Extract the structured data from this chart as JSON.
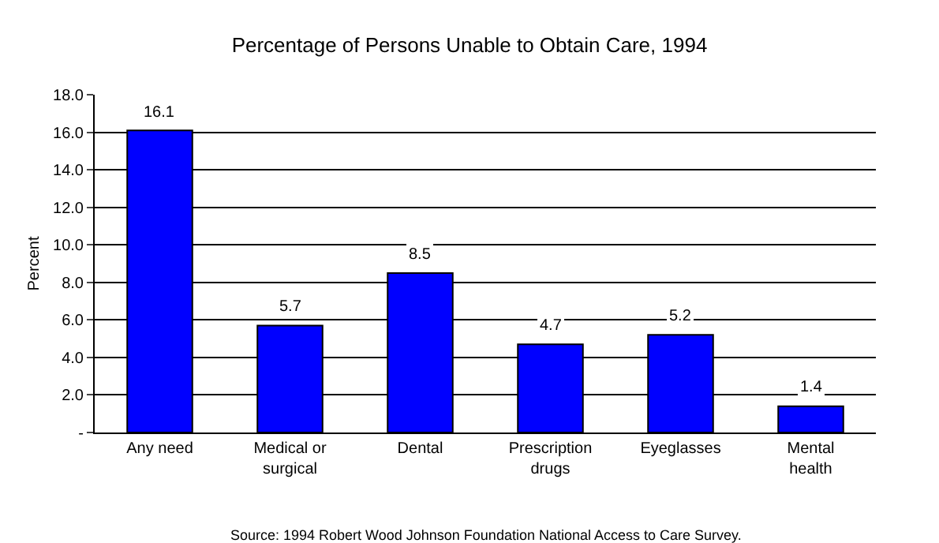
{
  "chart_data": {
    "type": "bar",
    "title": "Percentage of Persons Unable to Obtain Care, 1994",
    "ylabel": "Percent",
    "categories": [
      "Any need",
      "Medical or\nsurgical",
      "Dental",
      "Prescription\ndrugs",
      "Eyeglasses",
      "Mental\nhealth"
    ],
    "values": [
      16.1,
      5.7,
      8.5,
      4.7,
      5.2,
      1.4
    ],
    "color": "#0000ff",
    "ylim": [
      0,
      18
    ],
    "yticks": [
      {
        "value": 0,
        "label": "-"
      },
      {
        "value": 2,
        "label": "2.0"
      },
      {
        "value": 4,
        "label": "4.0"
      },
      {
        "value": 6,
        "label": "6.0"
      },
      {
        "value": 8,
        "label": "8.0"
      },
      {
        "value": 10,
        "label": "10.0"
      },
      {
        "value": 12,
        "label": "12.0"
      },
      {
        "value": 14,
        "label": "14.0"
      },
      {
        "value": 16,
        "label": "16.0"
      },
      {
        "value": 18,
        "label": "18.0"
      }
    ],
    "grid": "y",
    "data_labels": true,
    "legend": false,
    "annotations": [
      "Source: 1994 Robert Wood Johnson Foundation National Access to Care Survey."
    ]
  }
}
